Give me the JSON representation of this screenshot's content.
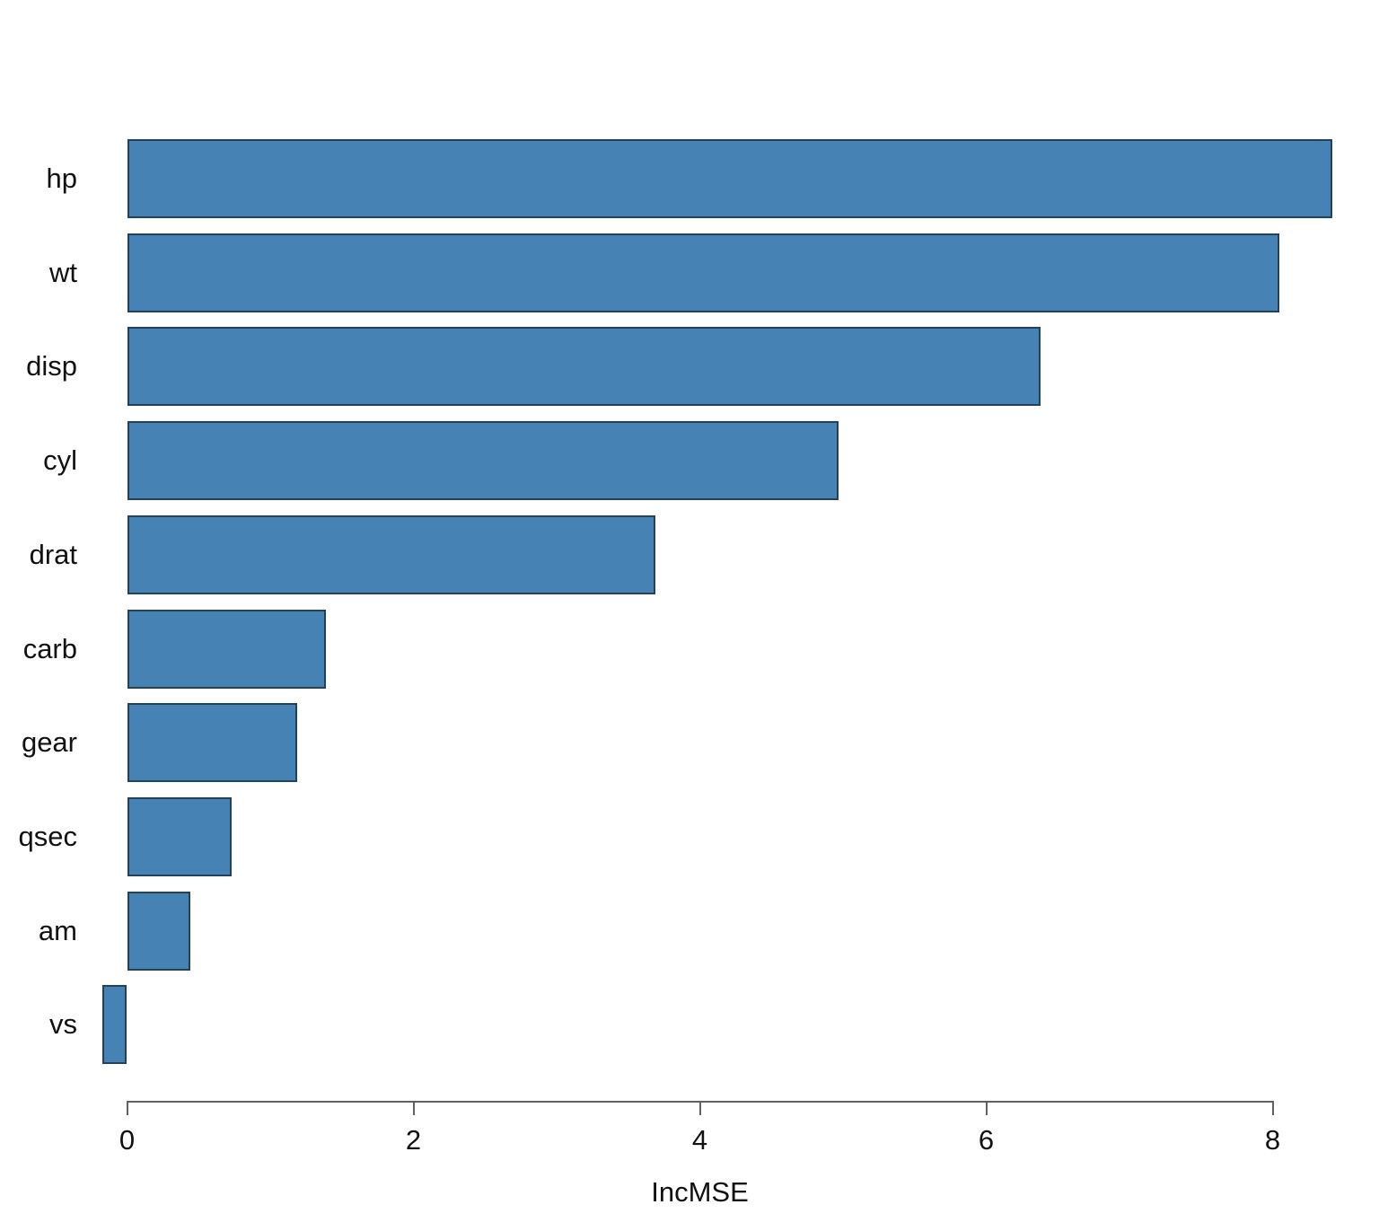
{
  "chart_data": {
    "type": "bar",
    "orientation": "horizontal",
    "title": "",
    "xlabel": "IncMSE",
    "ylabel": "",
    "categories": [
      "hp",
      "wt",
      "disp",
      "cyl",
      "drat",
      "carb",
      "gear",
      "qsec",
      "am",
      "vs"
    ],
    "values": [
      8.42,
      8.05,
      6.38,
      4.97,
      3.69,
      1.39,
      1.19,
      0.73,
      0.44,
      -0.17
    ],
    "x_ticks": [
      "0",
      "2",
      "4",
      "6",
      "8"
    ],
    "x_tick_values": [
      0,
      2,
      4,
      6,
      8
    ],
    "xlim": [
      -0.25,
      8.6
    ],
    "grid": false,
    "legend": false,
    "colors": {
      "bar_fill": "#4682b4",
      "bar_border": "#22415a",
      "axis": "#616161",
      "text": "#111111"
    }
  }
}
